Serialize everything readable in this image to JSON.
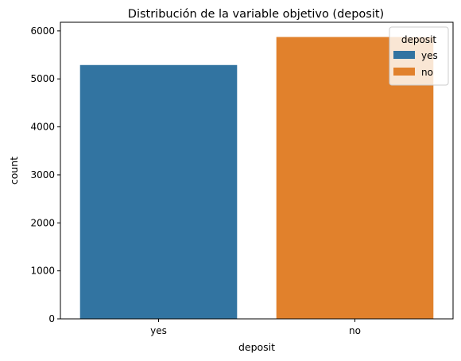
{
  "chart_data": {
    "type": "bar",
    "title": "Distribución de la variable objetivo (deposit)",
    "xlabel": "deposit",
    "ylabel": "count",
    "categories": [
      "yes",
      "no"
    ],
    "values": [
      5289,
      5873
    ],
    "colors": [
      "#3274a1",
      "#e1812c"
    ],
    "ylim": [
      0,
      6180
    ],
    "yticks": [
      0,
      1000,
      2000,
      3000,
      4000,
      5000,
      6000
    ],
    "grid": false,
    "legend": {
      "title": "deposit",
      "placement": "top-right",
      "entries": [
        "yes",
        "no"
      ]
    }
  }
}
